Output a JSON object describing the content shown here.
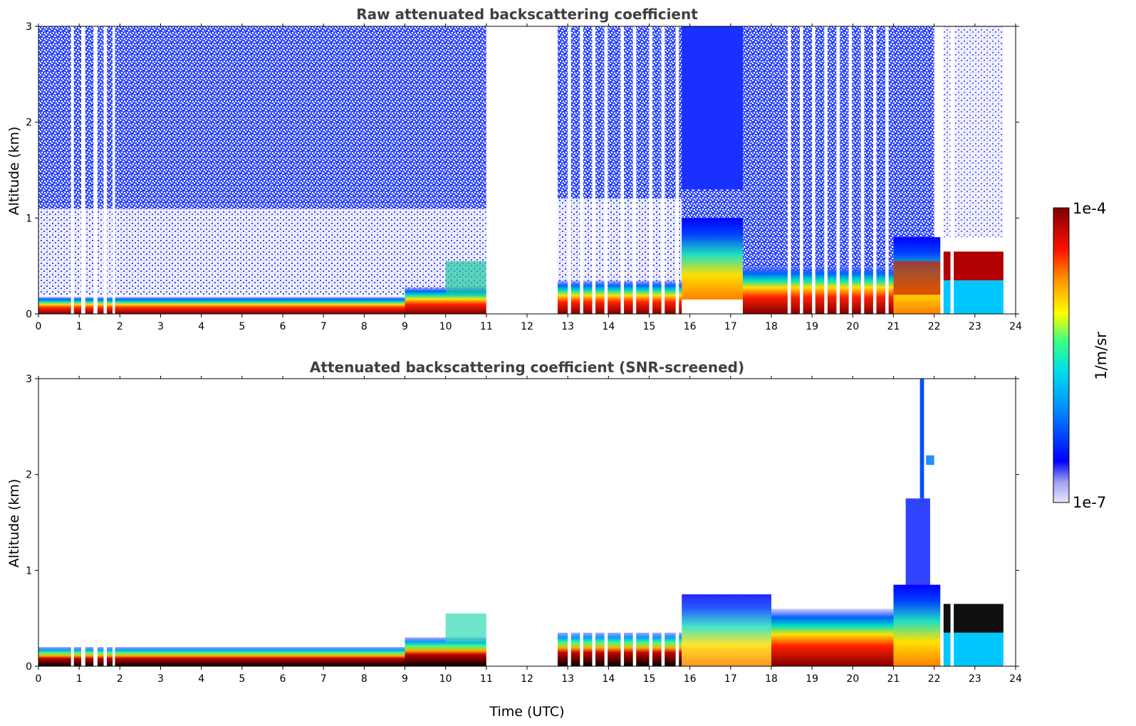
{
  "chart_data": [
    {
      "type": "heatmap",
      "title": "Raw attenuated backscattering coefficient",
      "xlabel": "",
      "ylabel": "Altitude (km)",
      "xlim": [
        0,
        24
      ],
      "ylim": [
        0,
        3
      ],
      "xticks": [
        "0",
        "1",
        "2",
        "3",
        "4",
        "5",
        "6",
        "7",
        "8",
        "9",
        "10",
        "11",
        "12",
        "13",
        "14",
        "15",
        "16",
        "17",
        "18",
        "19",
        "20",
        "21",
        "22",
        "23",
        "24"
      ],
      "yticks": [
        "0",
        "1",
        "2",
        "3"
      ],
      "data_gaps": [
        [
          0.8,
          0.87
        ],
        [
          1.05,
          1.15
        ],
        [
          1.35,
          1.45
        ],
        [
          1.6,
          1.68
        ],
        [
          1.82,
          1.88
        ],
        [
          11.0,
          12.75
        ]
      ],
      "features": [
        {
          "time_range": [
            0,
            11
          ],
          "surface_layer_top_km": 0.15,
          "color_high": "#800000"
        },
        {
          "time_range": [
            15.8,
            17.3
          ],
          "aerosol_layer_top_km": 1.0
        },
        {
          "time_range": [
            21,
            22.2
          ],
          "layer_top_km": 0.8
        },
        {
          "time_range": [
            22.2,
            23.7
          ],
          "layer_top_km": 0.65
        }
      ]
    },
    {
      "type": "heatmap",
      "title": "Attenuated backscattering coefficient (SNR-screened)",
      "xlabel": "Time (UTC)",
      "ylabel": "Altitude (km)",
      "xlim": [
        0,
        24
      ],
      "ylim": [
        0,
        3
      ],
      "xticks": [
        "0",
        "1",
        "2",
        "3",
        "4",
        "5",
        "6",
        "7",
        "8",
        "9",
        "10",
        "11",
        "12",
        "13",
        "14",
        "15",
        "16",
        "17",
        "18",
        "19",
        "20",
        "21",
        "22",
        "23",
        "24"
      ],
      "yticks": [
        "0",
        "1",
        "2",
        "3"
      ],
      "data_gaps": [
        [
          0.8,
          0.87
        ],
        [
          1.05,
          1.15
        ],
        [
          1.35,
          1.45
        ],
        [
          1.6,
          1.68
        ],
        [
          1.82,
          1.88
        ],
        [
          11.0,
          12.75
        ]
      ],
      "features": [
        {
          "time_range": [
            0,
            11
          ],
          "surface_layer_top_km": 0.2
        },
        {
          "time_range": [
            21.2,
            22.0
          ],
          "cloud_top_km": 3.0
        },
        {
          "time_range": [
            22.2,
            23.7
          ],
          "layer_top_km": 0.65
        }
      ]
    }
  ],
  "colorbar": {
    "label": "1/m/sr",
    "max_label": "1e-4",
    "min_label": "1e-7",
    "colors": [
      "#e6e6fa",
      "#0000ff",
      "#00b4ff",
      "#00ffc8",
      "#ffff00",
      "#ff8c00",
      "#ff0000",
      "#800000"
    ]
  }
}
